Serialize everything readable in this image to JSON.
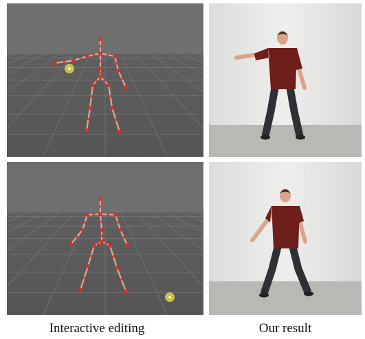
{
  "figure": {
    "captions": [
      "Interactive editing",
      "Our result"
    ]
  }
}
